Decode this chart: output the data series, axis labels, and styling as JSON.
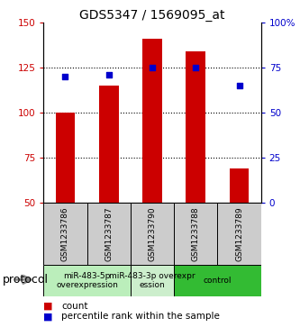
{
  "title": "GDS5347 / 1569095_at",
  "samples": [
    "GSM1233786",
    "GSM1233787",
    "GSM1233790",
    "GSM1233788",
    "GSM1233789"
  ],
  "counts": [
    100,
    115,
    141,
    134,
    69
  ],
  "percentiles": [
    70,
    71,
    75,
    75,
    65
  ],
  "ylim_left": [
    50,
    150
  ],
  "ylim_right": [
    0,
    100
  ],
  "yticks_left": [
    50,
    75,
    100,
    125,
    150
  ],
  "yticks_right": [
    0,
    25,
    50,
    75,
    100
  ],
  "bar_color": "#cc0000",
  "dot_color": "#0000cc",
  "bar_bottom": 50,
  "groups": [
    {
      "label": "miR-483-5p\noverexpression",
      "start": 0,
      "end": 2,
      "color": "#bbeebb"
    },
    {
      "label": "miR-483-3p overexpr\nession",
      "start": 2,
      "end": 3,
      "color": "#cceecc"
    },
    {
      "label": "control",
      "start": 3,
      "end": 5,
      "color": "#33bb33"
    }
  ],
  "protocol_label": "protocol",
  "legend_count_label": "count",
  "legend_percentile_label": "percentile rank within the sample",
  "sample_box_color": "#cccccc",
  "title_fontsize": 10,
  "tick_fontsize": 7.5,
  "sample_fontsize": 6.5,
  "group_fontsize": 6.5,
  "legend_fontsize": 7.5,
  "protocol_fontsize": 9
}
